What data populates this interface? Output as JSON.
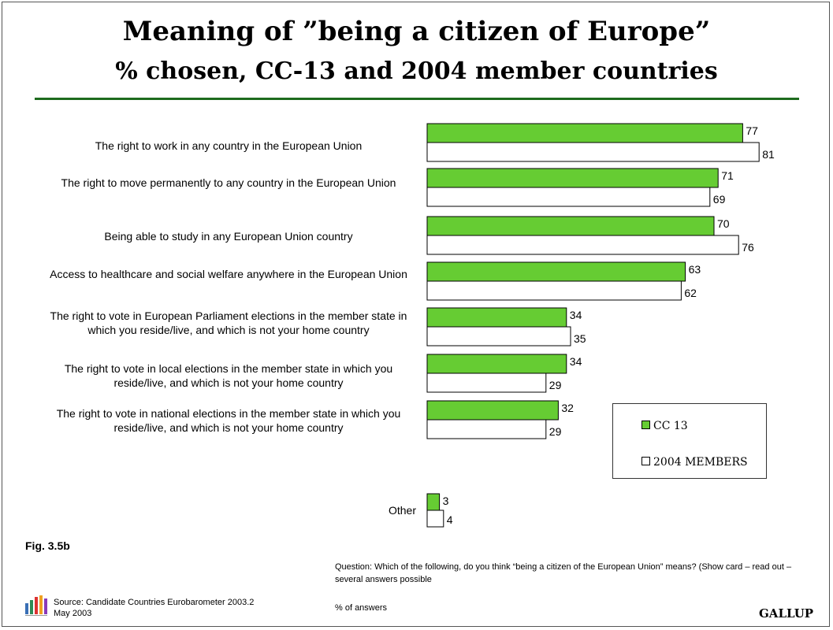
{
  "header": {
    "title": "Meaning of ”being a citizen of Europe”",
    "subtitle": "% chosen, CC-13 and 2004 member countries"
  },
  "chart_data": {
    "type": "bar",
    "orientation": "horizontal",
    "categories": [
      "The right to work in any country in the European Union",
      "The right to move permanently to any country in the European Union",
      "Being able to study in any European Union country",
      "Access to healthcare and social welfare anywhere in the European Union",
      "The right to vote in European Parliament elections in the member state in which you reside/live, and which is not your home country",
      "The right to vote in local elections in the member state in which you reside/live, and which is not your home country",
      "The right to vote in national elections in the member state in which you reside/live, and which is not your home country",
      "Other"
    ],
    "series": [
      {
        "name": "CC 13",
        "values": [
          77,
          71,
          70,
          63,
          34,
          34,
          32,
          3
        ],
        "color": "#66cc33"
      },
      {
        "name": "2004 MEMBERS",
        "values": [
          81,
          69,
          76,
          62,
          35,
          29,
          29,
          4
        ],
        "color": "#ffffff"
      }
    ],
    "xlim": [
      0,
      100
    ],
    "grid": false,
    "legend": "right"
  },
  "footer": {
    "fig": "Fig. 3.5b",
    "question": "Question:  Which of the following, do you think “being a citizen of the European Union” means? (Show card – read out – several answers possible",
    "source_line1": "Source: Candidate Countries Eurobarometer 2003.2",
    "source_line2": "May 2003",
    "answers": "% of answers",
    "brand": "GALLUP"
  }
}
